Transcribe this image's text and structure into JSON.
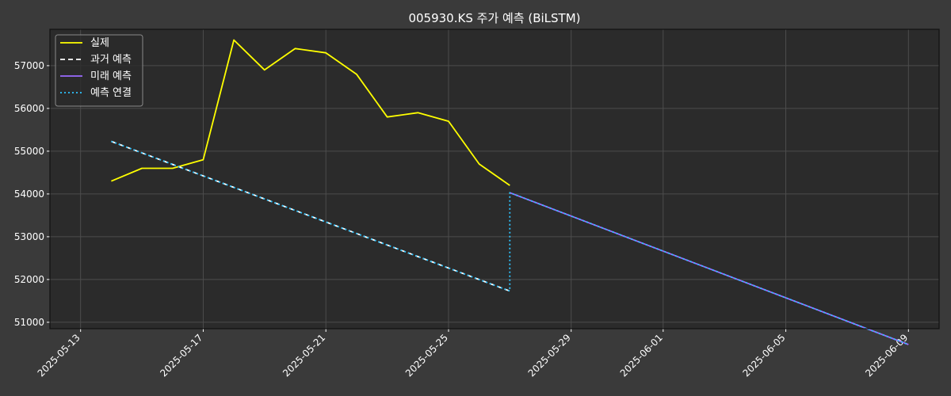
{
  "chart_data": {
    "type": "line",
    "title": "005930.KS 주가 예측 (BiLSTM)",
    "xlabel": "",
    "ylabel": "",
    "x_axis_type": "date",
    "xlim": [
      "2025-05-12T00:00:00",
      "2025-06-10T00:00:00"
    ],
    "ylim": [
      50850,
      57850
    ],
    "xticks": [
      "2025-05-13",
      "2025-05-17",
      "2025-05-21",
      "2025-05-25",
      "2025-05-29",
      "2025-06-01",
      "2025-06-05",
      "2025-06-09"
    ],
    "yticks": [
      51000,
      52000,
      53000,
      54000,
      55000,
      56000,
      57000
    ],
    "grid": true,
    "legend_position": "top-left",
    "colors": {
      "figure_bg": "#3a3a3a",
      "axes_bg": "#2b2b2b",
      "grid": "#4d4d4d",
      "text": "#ffffff"
    },
    "series": [
      {
        "name": "실제",
        "style": "solid",
        "color": "#ffff00",
        "x": [
          "2025-05-14",
          "2025-05-15",
          "2025-05-16",
          "2025-05-17",
          "2025-05-18",
          "2025-05-19",
          "2025-05-20",
          "2025-05-21",
          "2025-05-22",
          "2025-05-23",
          "2025-05-24",
          "2025-05-25",
          "2025-05-26",
          "2025-05-27"
        ],
        "y": [
          54300,
          54600,
          54600,
          54800,
          57600,
          56900,
          57400,
          57300,
          56800,
          55800,
          55900,
          55700,
          54700,
          54200
        ]
      },
      {
        "name": "과거 예측",
        "style": "dashed",
        "color": "#ffffff",
        "x": [
          "2025-05-14",
          "2025-05-27"
        ],
        "y": [
          55230,
          51730
        ]
      },
      {
        "name": "미래 예측",
        "style": "solid",
        "color": "#9b6bff",
        "x": [
          "2025-05-27",
          "2025-06-09"
        ],
        "y": [
          54030,
          50480
        ]
      },
      {
        "name": "예측 연결",
        "style": "dotted",
        "color": "#2ec4ff",
        "x": [
          "2025-05-14",
          "2025-05-27",
          "2025-05-27",
          "2025-06-09"
        ],
        "y": [
          55230,
          51730,
          54030,
          50480
        ]
      }
    ]
  }
}
